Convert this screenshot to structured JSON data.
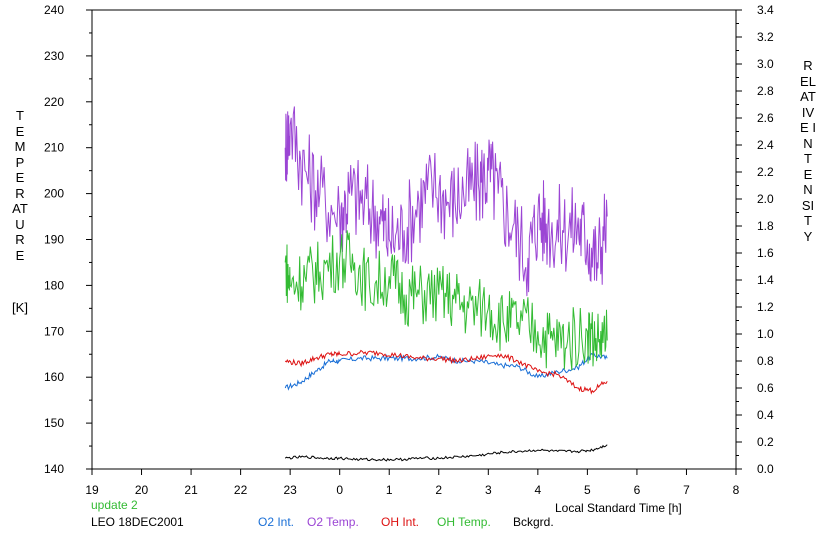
{
  "chart_data": {
    "type": "line",
    "left_axis_label": "TEMPERATURE",
    "left_axis_unit": "[K]",
    "right_axis_label": "RELATIVE INTENSITY",
    "xlabel": "Local Standard Time [h]",
    "update_note": "update 2",
    "station_date": "LEO 18DEC2001",
    "x_ticks": [
      "19",
      "20",
      "21",
      "22",
      "23",
      "0",
      "1",
      "2",
      "3",
      "4",
      "5",
      "6",
      "7",
      "8"
    ],
    "x_range_hours": [
      19,
      32
    ],
    "y_left": {
      "range": [
        140,
        240
      ],
      "ticks": [
        140,
        150,
        160,
        170,
        180,
        190,
        200,
        210,
        220,
        230,
        240
      ]
    },
    "y_right": {
      "range": [
        0.0,
        3.4
      ],
      "ticks": [
        "0.0",
        "0.2",
        "0.4",
        "0.6",
        "0.8",
        "1.0",
        "1.2",
        "1.4",
        "1.6",
        "1.8",
        "2.0",
        "2.2",
        "2.4",
        "2.6",
        "2.8",
        "3.0",
        "3.2",
        "3.4"
      ]
    },
    "series": [
      {
        "name": "O2 Int.",
        "color": "#1a6fd6",
        "axis": "right",
        "x": [
          22.9,
          23.2,
          23.5,
          23.8,
          24.0,
          24.4,
          24.8,
          25.2,
          25.6,
          26.0,
          26.4,
          26.8,
          27.2,
          27.6,
          28.0,
          28.4,
          28.8,
          29.1,
          29.4
        ],
        "y": [
          0.6,
          0.64,
          0.72,
          0.8,
          0.8,
          0.82,
          0.82,
          0.82,
          0.82,
          0.83,
          0.8,
          0.8,
          0.77,
          0.76,
          0.68,
          0.72,
          0.75,
          0.85,
          0.82
        ]
      },
      {
        "name": "O2 Temp.",
        "color": "#9b45d4",
        "axis": "left",
        "x": [
          22.9,
          23.0,
          23.3,
          23.6,
          24.0,
          24.2,
          24.5,
          24.8,
          25.0,
          25.3,
          25.6,
          25.9,
          26.2,
          26.5,
          26.8,
          27.0,
          27.2,
          27.5,
          27.8,
          28.0,
          28.2,
          28.5,
          28.8,
          29.0,
          29.2,
          29.4
        ],
        "y": [
          210,
          215,
          205,
          200,
          195,
          200,
          198,
          195,
          190,
          192,
          198,
          202,
          198,
          200,
          202,
          205,
          200,
          193,
          186,
          195,
          193,
          192,
          193,
          190,
          185,
          195
        ]
      },
      {
        "name": "OH Int.",
        "color": "#dd1111",
        "axis": "right",
        "x": [
          22.9,
          23.2,
          23.5,
          23.8,
          24.0,
          24.4,
          24.8,
          25.2,
          25.6,
          26.0,
          26.4,
          26.8,
          27.2,
          27.6,
          28.0,
          28.4,
          28.8,
          29.1,
          29.4
        ],
        "y": [
          0.8,
          0.78,
          0.82,
          0.85,
          0.85,
          0.86,
          0.86,
          0.84,
          0.82,
          0.82,
          0.8,
          0.82,
          0.85,
          0.8,
          0.72,
          0.7,
          0.6,
          0.58,
          0.65
        ]
      },
      {
        "name": "OH Temp.",
        "color": "#33bb33",
        "axis": "left",
        "x": [
          22.9,
          23.0,
          23.3,
          23.6,
          24.0,
          24.3,
          24.6,
          25.0,
          25.3,
          25.6,
          26.0,
          26.3,
          26.6,
          27.0,
          27.3,
          27.6,
          28.0,
          28.3,
          28.6,
          29.0,
          29.2,
          29.4
        ],
        "y": [
          185,
          180,
          182,
          183,
          186,
          185,
          180,
          182,
          178,
          178,
          178,
          177,
          175,
          175,
          172,
          172,
          170,
          168,
          168,
          170,
          168,
          168
        ]
      },
      {
        "name": "Bckgrd.",
        "color": "#000000",
        "axis": "right",
        "x": [
          22.9,
          23.3,
          23.7,
          24.0,
          24.4,
          24.8,
          25.2,
          25.6,
          26.0,
          26.4,
          26.8,
          27.2,
          27.6,
          28.0,
          28.4,
          28.8,
          29.1,
          29.4
        ],
        "y": [
          0.08,
          0.09,
          0.08,
          0.08,
          0.07,
          0.07,
          0.07,
          0.08,
          0.08,
          0.09,
          0.1,
          0.12,
          0.13,
          0.14,
          0.13,
          0.13,
          0.14,
          0.18
        ]
      }
    ]
  }
}
